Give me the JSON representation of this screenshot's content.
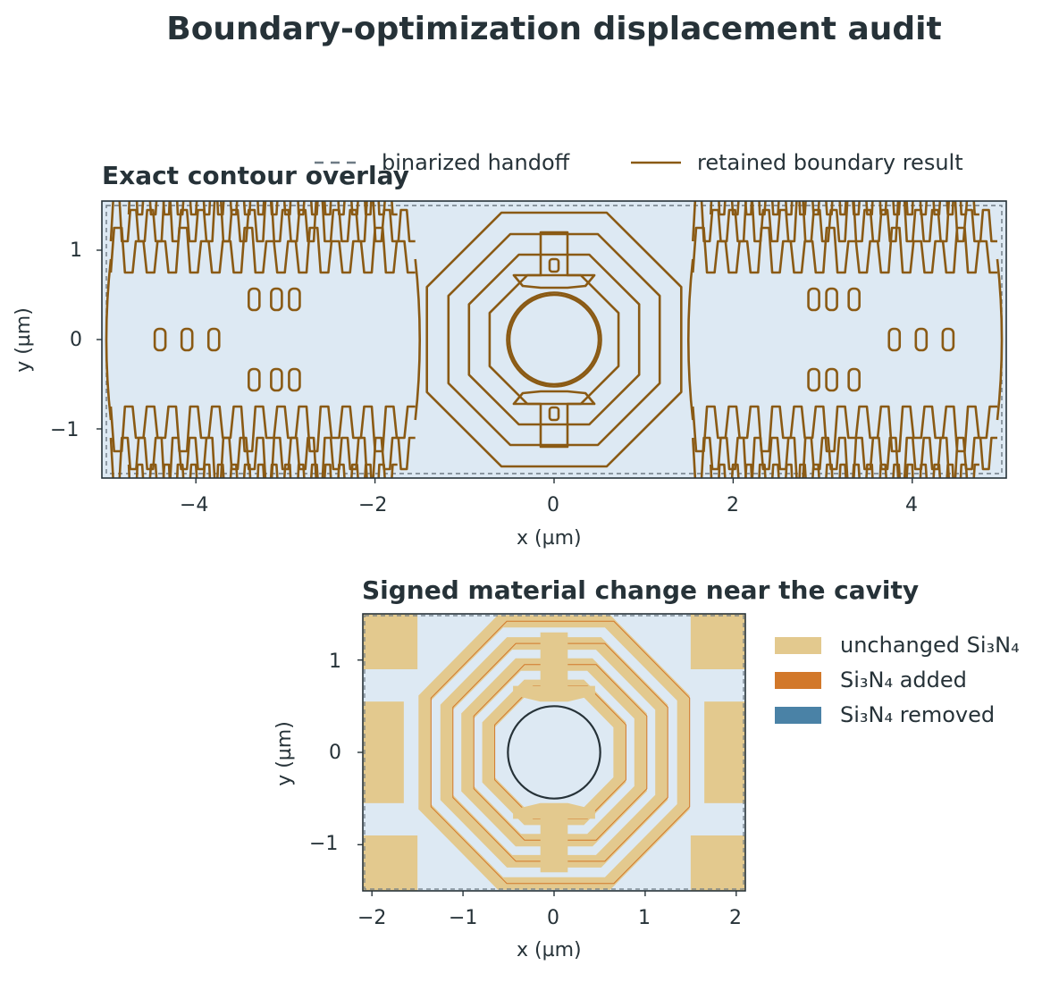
{
  "suptitle": "Boundary-optimization displacement audit",
  "colors": {
    "background_fill": "#dde9f3",
    "retained_boundary": "#8a5a14",
    "binarized_handoff": "#6e7b85",
    "unchanged": "#e3c98e",
    "added": "#d2782a",
    "removed": "#4a82a6",
    "axis": "#263238"
  },
  "chart_data": [
    {
      "type": "contour",
      "title": "Exact contour overlay",
      "xlabel": "x (µm)",
      "ylabel": "y (µm)",
      "xlim": [
        -5.05,
        5.05
      ],
      "ylim": [
        -1.55,
        1.55
      ],
      "xticks": [
        -4,
        -2,
        0,
        2,
        4
      ],
      "xtick_labels": [
        "−4",
        "−2",
        "0",
        "2",
        "4"
      ],
      "yticks": [
        -1,
        0,
        1
      ],
      "ytick_labels": [
        "−1",
        "0",
        "1"
      ],
      "legend": [
        "binarized handoff",
        "retained boundary result"
      ],
      "legend_placement": "above plot, right",
      "cavity": {
        "cx": 0,
        "cy": 0,
        "r": 0.5
      },
      "rings": [
        0.72,
        0.95,
        1.18,
        1.42
      ],
      "domain": [
        -5.0,
        5.0,
        -1.5,
        1.5
      ]
    },
    {
      "type": "heatmap",
      "title": "Signed material change near the cavity",
      "xlabel": "x (µm)",
      "ylabel": "y (µm)",
      "xlim": [
        -2.1,
        2.1
      ],
      "ylim": [
        -1.5,
        1.5
      ],
      "xticks": [
        -2,
        -1,
        0,
        1,
        2
      ],
      "xtick_labels": [
        "−2",
        "−1",
        "0",
        "1",
        "2"
      ],
      "yticks": [
        -1,
        0,
        1
      ],
      "ytick_labels": [
        "−1",
        "0",
        "1"
      ],
      "legend": [
        "unchanged Si₃N₄",
        "Si₃N₄ added",
        "Si₃N₄ removed"
      ],
      "legend_placement": "right",
      "cavity": {
        "cx": 0,
        "cy": 0,
        "r": 0.5
      }
    }
  ]
}
